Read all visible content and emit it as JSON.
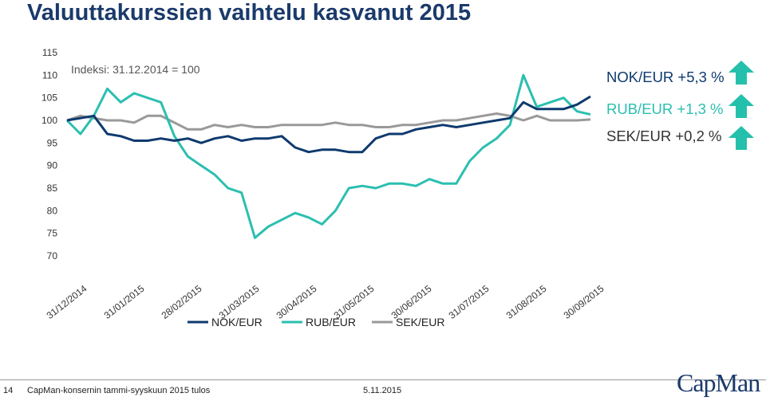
{
  "slide": {
    "title": "Valuuttakurssien vaihtelu kasvanut 2015",
    "footer_page": "14",
    "footer_text": "CapMan-konsernin tammi-syyskuun 2015 tulos",
    "footer_date": "5.11.2015",
    "logo_text": "CapMan"
  },
  "changes": [
    {
      "label": "NOK/EUR +5,3 %",
      "color": "#0e3a6e",
      "icon": "arrow-up-icon"
    },
    {
      "label": "RUB/EUR +1,3 %",
      "color": "#2bbfb0",
      "icon": "arrow-up-icon"
    },
    {
      "label": "SEK/EUR +0,2 %",
      "color": "#333333",
      "icon": "arrow-up-icon"
    }
  ],
  "colors": {
    "arrow": "#25c0ac",
    "title": "#1a3a6b"
  },
  "chart_data": {
    "type": "line",
    "annotation": "Indeksi: 31.12.2014 = 100",
    "ylim": [
      70,
      115
    ],
    "yticks": [
      70,
      75,
      80,
      85,
      90,
      95,
      100,
      105,
      110,
      115
    ],
    "x_tick_labels": [
      "31/12/2014",
      "31/01/2015",
      "28/02/2015",
      "31/03/2015",
      "30/04/2015",
      "31/05/2015",
      "30/06/2015",
      "31/07/2015",
      "31/08/2015",
      "30/09/2015"
    ],
    "x": [
      "2014-12-31",
      "2015-01-07",
      "2015-01-14",
      "2015-01-21",
      "2015-01-28",
      "2015-02-04",
      "2015-02-11",
      "2015-02-18",
      "2015-02-25",
      "2015-03-04",
      "2015-03-11",
      "2015-03-18",
      "2015-03-25",
      "2015-04-01",
      "2015-04-08",
      "2015-04-15",
      "2015-04-22",
      "2015-04-29",
      "2015-05-06",
      "2015-05-13",
      "2015-05-20",
      "2015-05-27",
      "2015-06-03",
      "2015-06-10",
      "2015-06-17",
      "2015-06-24",
      "2015-07-01",
      "2015-07-08",
      "2015-07-15",
      "2015-07-22",
      "2015-07-29",
      "2015-08-05",
      "2015-08-12",
      "2015-08-19",
      "2015-08-26",
      "2015-09-02",
      "2015-09-09",
      "2015-09-16",
      "2015-09-23",
      "2015-09-30"
    ],
    "legend_position": "bottom",
    "series": [
      {
        "name": "NOK/EUR",
        "color": "#0e3a6e",
        "values": [
          100,
          100.5,
          101,
          97,
          96.5,
          95.5,
          95.5,
          96,
          95.5,
          96,
          95,
          96,
          96.5,
          95.5,
          96,
          96,
          96.5,
          94,
          93,
          93.5,
          93.5,
          93,
          93,
          96,
          97,
          97,
          98,
          98.5,
          99,
          98.5,
          99,
          99.5,
          100,
          100.5,
          104,
          102.5,
          102.5,
          102.5,
          103.5,
          105.3
        ]
      },
      {
        "name": "RUB/EUR",
        "color": "#2bbfb0",
        "values": [
          100,
          97,
          101,
          107,
          104,
          106,
          105,
          104,
          96.5,
          92,
          90,
          88,
          85,
          84,
          74,
          76.5,
          78,
          79.5,
          78.5,
          77,
          80,
          85,
          85.5,
          85,
          86,
          86,
          85.5,
          87,
          86,
          86,
          91,
          94,
          96,
          99,
          110,
          103,
          104,
          105,
          102,
          101.3
        ]
      },
      {
        "name": "SEK/EUR",
        "color": "#999999",
        "values": [
          100,
          101,
          100.5,
          100,
          100,
          99.5,
          101,
          101,
          99.5,
          98,
          98,
          99,
          98.5,
          99,
          98.5,
          98.5,
          99,
          99,
          99,
          99,
          99.5,
          99,
          99,
          98.5,
          98.5,
          99,
          99,
          99.5,
          100,
          100,
          100.5,
          101,
          101.5,
          101,
          100,
          101,
          100,
          100,
          100,
          100.2
        ]
      }
    ]
  }
}
